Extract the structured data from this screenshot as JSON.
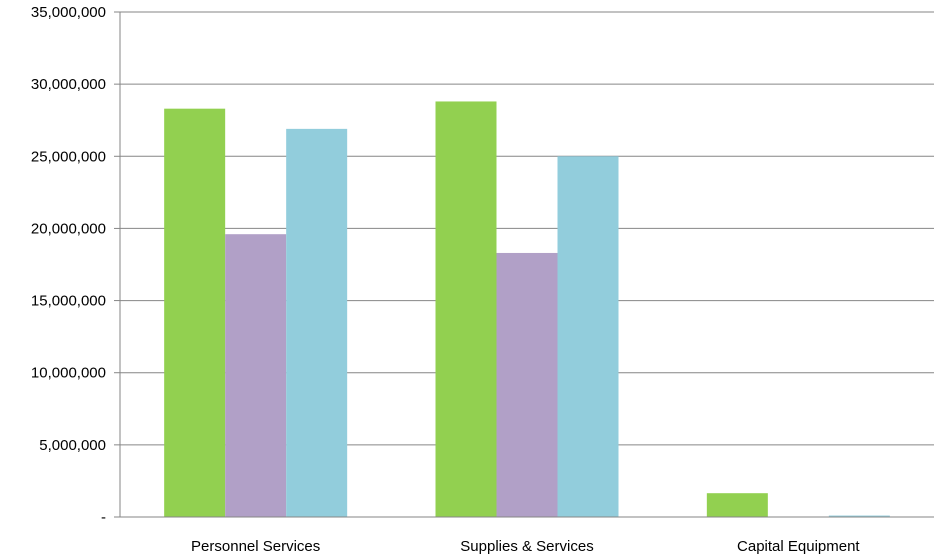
{
  "chart_data": {
    "type": "bar",
    "title": "",
    "xlabel": "",
    "ylabel": "",
    "categories": [
      "Personnel Services",
      "Supplies & Services",
      "Capital Equipment"
    ],
    "series": [
      {
        "color": "#92d050",
        "values": [
          28300000,
          28800000,
          1650000
        ]
      },
      {
        "color": "#b1a0c7",
        "values": [
          19600000,
          18300000,
          0
        ]
      },
      {
        "color": "#92cddc",
        "values": [
          26900000,
          25000000,
          100000
        ]
      }
    ],
    "ylim": [
      0,
      35000000
    ],
    "yticks": [
      {
        "value": 0,
        "label": "-"
      },
      {
        "value": 5000000,
        "label": "5,000,000"
      },
      {
        "value": 10000000,
        "label": "10,000,000"
      },
      {
        "value": 15000000,
        "label": "15,000,000"
      },
      {
        "value": 20000000,
        "label": "20,000,000"
      },
      {
        "value": 25000000,
        "label": "25,000,000"
      },
      {
        "value": 30000000,
        "label": "30,000,000"
      },
      {
        "value": 35000000,
        "label": "35,000,000"
      }
    ],
    "grid": true,
    "legend": "none"
  }
}
